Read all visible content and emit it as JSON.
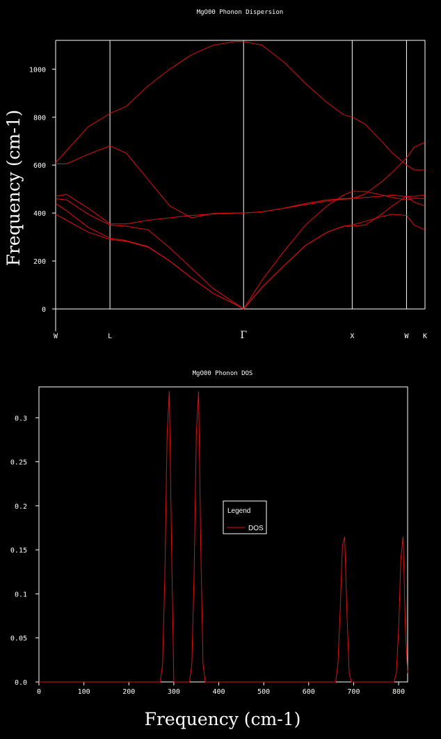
{
  "chart_data": [
    {
      "type": "line",
      "title": "MgO00 Phonon Dispersion",
      "xlabel": "",
      "ylabel": "Frequency (cm-1)",
      "ylim": [
        0,
        1120
      ],
      "yticks": [
        0,
        200,
        400,
        600,
        800,
        1000
      ],
      "grid": "vertical lines at high-symmetry points",
      "xlim": [
        0,
        3.4
      ],
      "kpoints": [
        {
          "label": "W",
          "x": 0.0
        },
        {
          "label": "L",
          "x": 0.5
        },
        {
          "label": "Γ",
          "x": 1.73
        },
        {
          "label": "X",
          "x": 2.73
        },
        {
          "label": "W",
          "x": 3.23
        },
        {
          "label": "K",
          "x": 3.4
        }
      ],
      "line_color": "#e01010",
      "series": [
        {
          "x": [
            0,
            0.1,
            0.3,
            0.5,
            0.65,
            0.85,
            1.05,
            1.25,
            1.45,
            1.65,
            1.73,
            1.9,
            2.1,
            2.3,
            2.5,
            2.65,
            2.73,
            2.85,
            3.0,
            3.1,
            3.23,
            3.3,
            3.4
          ],
          "y": [
            610,
            660,
            760,
            815,
            845,
            930,
            1000,
            1060,
            1100,
            1115,
            1115,
            1100,
            1030,
            940,
            860,
            810,
            800,
            770,
            700,
            650,
            600,
            580,
            580
          ]
        },
        {
          "x": [
            0,
            0.1,
            0.3,
            0.5,
            0.65,
            0.85,
            1.05,
            1.25,
            1.45,
            1.65,
            1.73,
            1.9,
            2.1,
            2.3,
            2.5,
            2.65,
            2.73,
            2.85,
            3.0,
            3.1,
            3.23,
            3.3,
            3.4
          ],
          "y": [
            605,
            605,
            645,
            680,
            650,
            540,
            430,
            380,
            398,
            400,
            400,
            405,
            420,
            435,
            450,
            458,
            460,
            480,
            530,
            570,
            630,
            675,
            695
          ]
        },
        {
          "x": [
            0,
            0.1,
            0.3,
            0.5,
            0.65,
            0.85,
            1.05,
            1.25,
            1.45,
            1.65,
            1.73,
            1.9,
            2.1,
            2.3,
            2.5,
            2.65,
            2.73,
            2.85,
            3.0,
            3.1,
            3.23,
            3.3,
            3.4
          ],
          "y": [
            470,
            478,
            420,
            355,
            355,
            370,
            380,
            390,
            396,
            400,
            400,
            405,
            420,
            440,
            455,
            460,
            462,
            465,
            470,
            475,
            468,
            470,
            475
          ]
        },
        {
          "x": [
            0,
            0.1,
            0.3,
            0.5,
            0.65,
            0.85,
            1.05,
            1.25,
            1.45,
            1.65,
            1.73,
            1.9,
            2.1,
            2.3,
            2.5,
            2.65,
            2.73,
            2.85,
            3.0,
            3.1,
            3.23,
            3.3,
            3.4
          ],
          "y": [
            460,
            455,
            395,
            350,
            345,
            330,
            255,
            170,
            85,
            25,
            0,
            120,
            240,
            350,
            430,
            475,
            490,
            490,
            475,
            465,
            455,
            462,
            460
          ]
        },
        {
          "x": [
            0,
            0.1,
            0.3,
            0.5,
            0.65,
            0.85,
            1.05,
            1.25,
            1.45,
            1.65,
            1.73,
            1.9,
            2.1,
            2.3,
            2.5,
            2.65,
            2.73,
            2.85,
            3.0,
            3.1,
            3.23,
            3.3,
            3.4
          ],
          "y": [
            440,
            410,
            340,
            295,
            285,
            260,
            200,
            130,
            65,
            20,
            0,
            90,
            180,
            265,
            320,
            345,
            345,
            350,
            395,
            430,
            470,
            445,
            430
          ]
        },
        {
          "x": [
            0,
            0.1,
            0.3,
            0.5,
            0.65,
            0.85,
            1.05,
            1.25,
            1.45,
            1.65,
            1.73,
            1.9,
            2.1,
            2.3,
            2.5,
            2.65,
            2.73,
            2.85,
            3.0,
            3.1,
            3.23,
            3.3,
            3.4
          ],
          "y": [
            395,
            370,
            320,
            290,
            282,
            258,
            200,
            130,
            65,
            20,
            0,
            90,
            180,
            265,
            320,
            345,
            350,
            365,
            385,
            395,
            390,
            350,
            330
          ]
        }
      ]
    },
    {
      "type": "line",
      "title": "MgO00 Phonon DOS",
      "xlabel": "Frequency (cm-1)",
      "ylabel": "",
      "xlim": [
        0,
        820
      ],
      "ylim": [
        0,
        0.335
      ],
      "xticks": [
        0,
        100,
        200,
        300,
        400,
        500,
        600,
        700,
        800
      ],
      "yticks": [
        0.0,
        0.05,
        0.1,
        0.15,
        0.2,
        0.25,
        0.3
      ],
      "ytick_labels": [
        "0.0",
        "0.05",
        "0.1",
        "0.15",
        "0.2",
        "0.25",
        "0.3"
      ],
      "legend": {
        "title": "Legend",
        "entries": [
          "DOS"
        ],
        "placement": "center"
      },
      "line_color": "#e01010",
      "series": [
        {
          "name": "DOS",
          "x": [
            0,
            270,
            275,
            280,
            285,
            290,
            295,
            300,
            335,
            340,
            345,
            350,
            355,
            360,
            365,
            370,
            660,
            665,
            670,
            675,
            680,
            685,
            690,
            695,
            790,
            795,
            800,
            805,
            810,
            815,
            820
          ],
          "y": [
            0,
            0,
            0.02,
            0.12,
            0.28,
            0.33,
            0.15,
            0,
            0,
            0.02,
            0.12,
            0.28,
            0.33,
            0.15,
            0.02,
            0,
            0,
            0.02,
            0.08,
            0.155,
            0.165,
            0.08,
            0.01,
            0,
            0,
            0.01,
            0.06,
            0.14,
            0.165,
            0.06,
            0.01
          ]
        }
      ]
    }
  ]
}
